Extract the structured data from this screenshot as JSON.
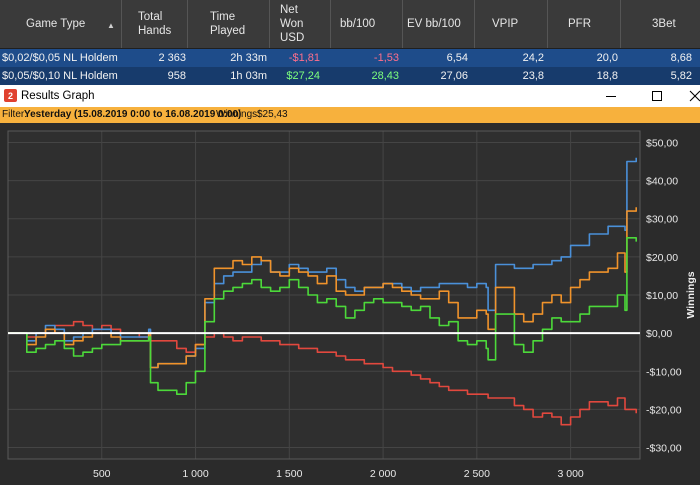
{
  "table": {
    "headers": {
      "game_type": "Game Type",
      "total_hands": [
        "Total",
        "Hands"
      ],
      "time_played": [
        "Time",
        "Played"
      ],
      "net_won": [
        "Net",
        "Won",
        "USD"
      ],
      "bb100": "bb/100",
      "ev_bb100": "EV bb/100",
      "vpip": "VPIP",
      "pfr": "PFR",
      "threebet": "3Bet"
    },
    "rows": [
      {
        "game": "$0,02/$0,05 NL Holdem",
        "hands": "2 363",
        "time": "2h 33m",
        "net": "-$1,81",
        "bb100": "-1,53",
        "ev": "6,54",
        "vpip": "24,2",
        "pfr": "20,0",
        "threebet": "8,68"
      },
      {
        "game": "$0,05/$0,10 NL Holdem",
        "hands": "958",
        "time": "1h 03m",
        "net": "$27,24",
        "bb100": "28,43",
        "ev": "27,06",
        "vpip": "23,8",
        "pfr": "18,8",
        "threebet": "5,82"
      }
    ]
  },
  "window": {
    "title": "Results Graph"
  },
  "filter": {
    "label": "Filter:",
    "value": "Yesterday (15.08.2019 0:00 to 16.08.2019 0:00)",
    "winnings_label": "Winnings:",
    "winnings_value": "$25,43"
  },
  "chart_data": {
    "type": "line",
    "ylabel": "Winnings",
    "xlabel": "",
    "xlim": [
      0,
      3370
    ],
    "ylim": [
      -33,
      53
    ],
    "x_ticks": [
      500,
      1000,
      1500,
      2000,
      2500,
      3000
    ],
    "x_tick_labels": [
      "500",
      "1 000",
      "1 500",
      "2 000",
      "2 500",
      "3 000"
    ],
    "y_ticks": [
      50,
      40,
      30,
      20,
      10,
      0,
      -10,
      -20,
      -30
    ],
    "y_tick_labels": [
      "$50,00",
      "$40,00",
      "$30,00",
      "$20,00",
      "$10,00",
      "$0,00",
      "-$10,00",
      "-$20,00",
      "-$30,00"
    ],
    "grid": true,
    "zero_line": true,
    "series": [
      {
        "color": "#4a90d9",
        "x": [
          0,
          100,
          150,
          200,
          250,
          300,
          350,
          400,
          450,
          500,
          550,
          600,
          700,
          750,
          760,
          800,
          900,
          950,
          1000,
          1050,
          1100,
          1150,
          1200,
          1250,
          1300,
          1350,
          1400,
          1450,
          1500,
          1550,
          1600,
          1650,
          1700,
          1750,
          1800,
          1850,
          1900,
          1950,
          2000,
          2050,
          2100,
          2150,
          2200,
          2250,
          2300,
          2350,
          2400,
          2450,
          2500,
          2550,
          2560,
          2600,
          2700,
          2750,
          2800,
          2850,
          2900,
          2950,
          3000,
          3050,
          3100,
          3200,
          3250,
          3290,
          3300,
          3350
        ],
        "y": [
          0,
          -2,
          0,
          2,
          1,
          -2,
          -1,
          0,
          1,
          1,
          0,
          -1,
          -1,
          1,
          -9,
          -8,
          -8,
          -6,
          -4,
          8,
          13,
          15,
          16,
          16,
          18,
          19,
          16,
          16,
          18,
          17,
          16,
          16,
          17,
          14,
          12,
          11,
          12,
          12,
          13,
          13,
          12,
          11,
          12,
          12,
          13,
          13,
          13,
          12,
          13,
          12,
          6,
          18,
          17,
          17,
          18,
          18,
          19,
          20,
          23,
          23,
          26,
          28,
          28,
          27,
          45,
          46
        ]
      },
      {
        "color": "#f0932b",
        "x": [
          0,
          100,
          150,
          200,
          250,
          300,
          350,
          400,
          450,
          500,
          550,
          600,
          700,
          750,
          760,
          800,
          900,
          950,
          1000,
          1050,
          1100,
          1150,
          1200,
          1250,
          1300,
          1350,
          1400,
          1450,
          1500,
          1550,
          1600,
          1650,
          1700,
          1750,
          1800,
          1850,
          1900,
          1950,
          2000,
          2050,
          2100,
          2150,
          2200,
          2250,
          2300,
          2350,
          2400,
          2450,
          2500,
          2550,
          2560,
          2600,
          2700,
          2750,
          2800,
          2850,
          2900,
          2950,
          3000,
          3050,
          3100,
          3200,
          3250,
          3290,
          3300,
          3350
        ],
        "y": [
          0,
          -3,
          -1,
          1,
          0,
          -3,
          -2,
          -1,
          0,
          0,
          -1,
          -2,
          -2,
          0,
          -9,
          -8,
          -8,
          -6,
          -3,
          9,
          17,
          17,
          19,
          18,
          20,
          19,
          16,
          15,
          17,
          16,
          15,
          13,
          15,
          11,
          10,
          10,
          12,
          12,
          13,
          12,
          11,
          10,
          9,
          9,
          11,
          8,
          4,
          4,
          6,
          5,
          1,
          12,
          5,
          3,
          5,
          8,
          10,
          8,
          12,
          14,
          16,
          17,
          21,
          16,
          32,
          33
        ]
      },
      {
        "color": "#4cd93a",
        "x": [
          0,
          100,
          150,
          200,
          250,
          300,
          350,
          400,
          450,
          500,
          550,
          600,
          700,
          750,
          760,
          800,
          900,
          950,
          1000,
          1050,
          1100,
          1150,
          1200,
          1250,
          1300,
          1350,
          1400,
          1450,
          1500,
          1550,
          1600,
          1650,
          1700,
          1750,
          1800,
          1850,
          1900,
          1950,
          2000,
          2050,
          2100,
          2150,
          2200,
          2250,
          2300,
          2350,
          2400,
          2450,
          2500,
          2550,
          2560,
          2600,
          2700,
          2750,
          2800,
          2850,
          2900,
          2950,
          3000,
          3050,
          3100,
          3200,
          3250,
          3290,
          3300,
          3350
        ],
        "y": [
          0,
          -5,
          -4,
          -3,
          -2,
          -4,
          -6,
          -5,
          -4,
          -3,
          -3,
          -2,
          -2,
          -1,
          -13,
          -15,
          -16,
          -13,
          -10,
          3,
          9,
          11,
          12,
          13,
          14,
          12,
          11,
          12,
          14,
          12,
          10,
          8,
          9,
          7,
          4,
          6,
          8,
          9,
          8,
          8,
          7,
          6,
          7,
          4,
          2,
          3,
          -2,
          -3,
          -2,
          -4,
          -7,
          5,
          -3,
          -5,
          -2,
          1,
          4,
          3,
          3,
          5,
          7,
          7,
          10,
          6,
          25,
          24
        ]
      },
      {
        "color": "#e2483e",
        "x": [
          0,
          100,
          150,
          200,
          250,
          300,
          350,
          400,
          450,
          500,
          550,
          600,
          700,
          750,
          760,
          800,
          900,
          950,
          1000,
          1050,
          1100,
          1150,
          1200,
          1250,
          1300,
          1350,
          1400,
          1450,
          1500,
          1550,
          1600,
          1650,
          1700,
          1750,
          1800,
          1850,
          1900,
          1950,
          2000,
          2050,
          2100,
          2150,
          2200,
          2250,
          2300,
          2350,
          2400,
          2450,
          2500,
          2550,
          2560,
          2600,
          2700,
          2750,
          2800,
          2850,
          2900,
          2950,
          3000,
          3050,
          3100,
          3200,
          3250,
          3290,
          3300,
          3350
        ],
        "y": [
          0,
          -1,
          0,
          0,
          2,
          2,
          3,
          2,
          1,
          2,
          1,
          0,
          -1,
          -1,
          -2,
          -2,
          -4,
          -5,
          -3,
          -1,
          0,
          -1,
          -2,
          -1,
          -1,
          -2,
          -2,
          -3,
          -3,
          -4,
          -4,
          -5,
          -5,
          -6,
          -7,
          -7,
          -8,
          -8,
          -9,
          -10,
          -10,
          -11,
          -12,
          -13,
          -14,
          -15,
          -15,
          -16,
          -16,
          -16,
          -17,
          -17,
          -19,
          -20,
          -22,
          -21,
          -22,
          -24,
          -22,
          -20,
          -18,
          -19,
          -17,
          -20,
          -20,
          -21
        ]
      }
    ]
  }
}
